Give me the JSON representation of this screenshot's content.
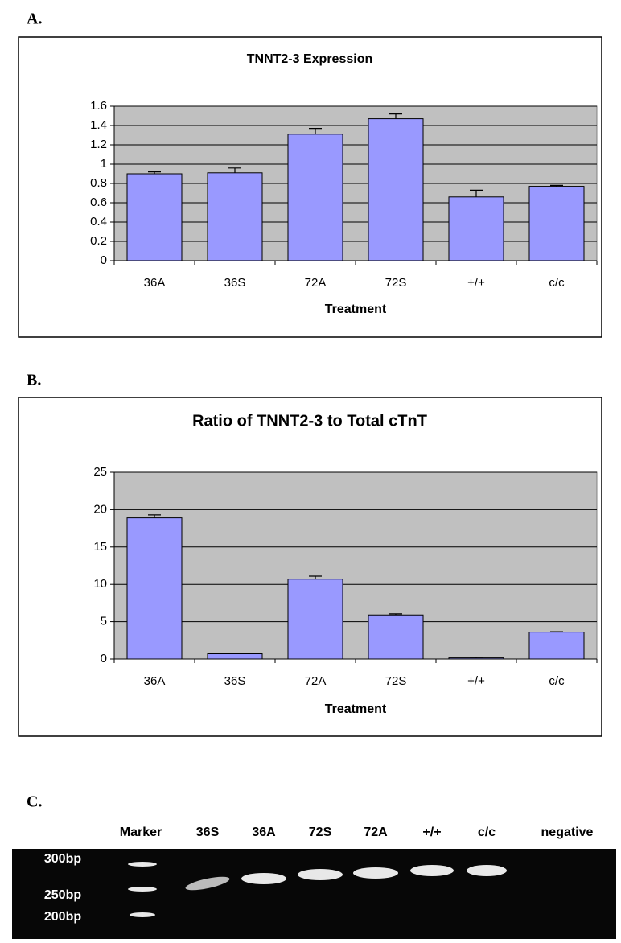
{
  "chart_data": [
    {
      "type": "bar",
      "panel": "A.",
      "title": "TNNT2-3 Expression",
      "x_label": "Treatment",
      "categories": [
        "36A",
        "36S",
        "72A",
        "72S",
        "+/+",
        "c/c"
      ],
      "values": [
        0.9,
        0.91,
        1.31,
        1.47,
        0.66,
        0.77
      ],
      "errors": [
        0.02,
        0.05,
        0.06,
        0.05,
        0.07,
        0.01
      ],
      "color": "#9999ff",
      "ylim": [
        0,
        1.6
      ],
      "yticks": [
        0,
        0.2,
        0.4,
        0.6,
        0.8,
        1,
        1.2,
        1.4,
        1.6
      ],
      "grid": true
    },
    {
      "type": "bar",
      "panel": "B.",
      "title": "Ratio of TNNT2-3 to Total cTnT",
      "x_label": "Treatment",
      "categories": [
        "36A",
        "36S",
        "72A",
        "72S",
        "+/+",
        "c/c"
      ],
      "values": [
        18.9,
        0.7,
        10.7,
        5.9,
        0.15,
        3.6
      ],
      "errors": [
        0.4,
        0.1,
        0.4,
        0.15,
        0.1,
        0.05
      ],
      "color": "#9999ff",
      "ylim": [
        0,
        25
      ],
      "yticks": [
        0,
        5,
        10,
        15,
        20,
        25
      ],
      "grid": true
    }
  ],
  "gel": {
    "panel": "C.",
    "lanes": [
      "Marker",
      "36S",
      "36A",
      "72S",
      "72A",
      "+/+",
      "c/c",
      "negative"
    ],
    "sizes": [
      "300bp",
      "250bp",
      "200bp"
    ]
  }
}
